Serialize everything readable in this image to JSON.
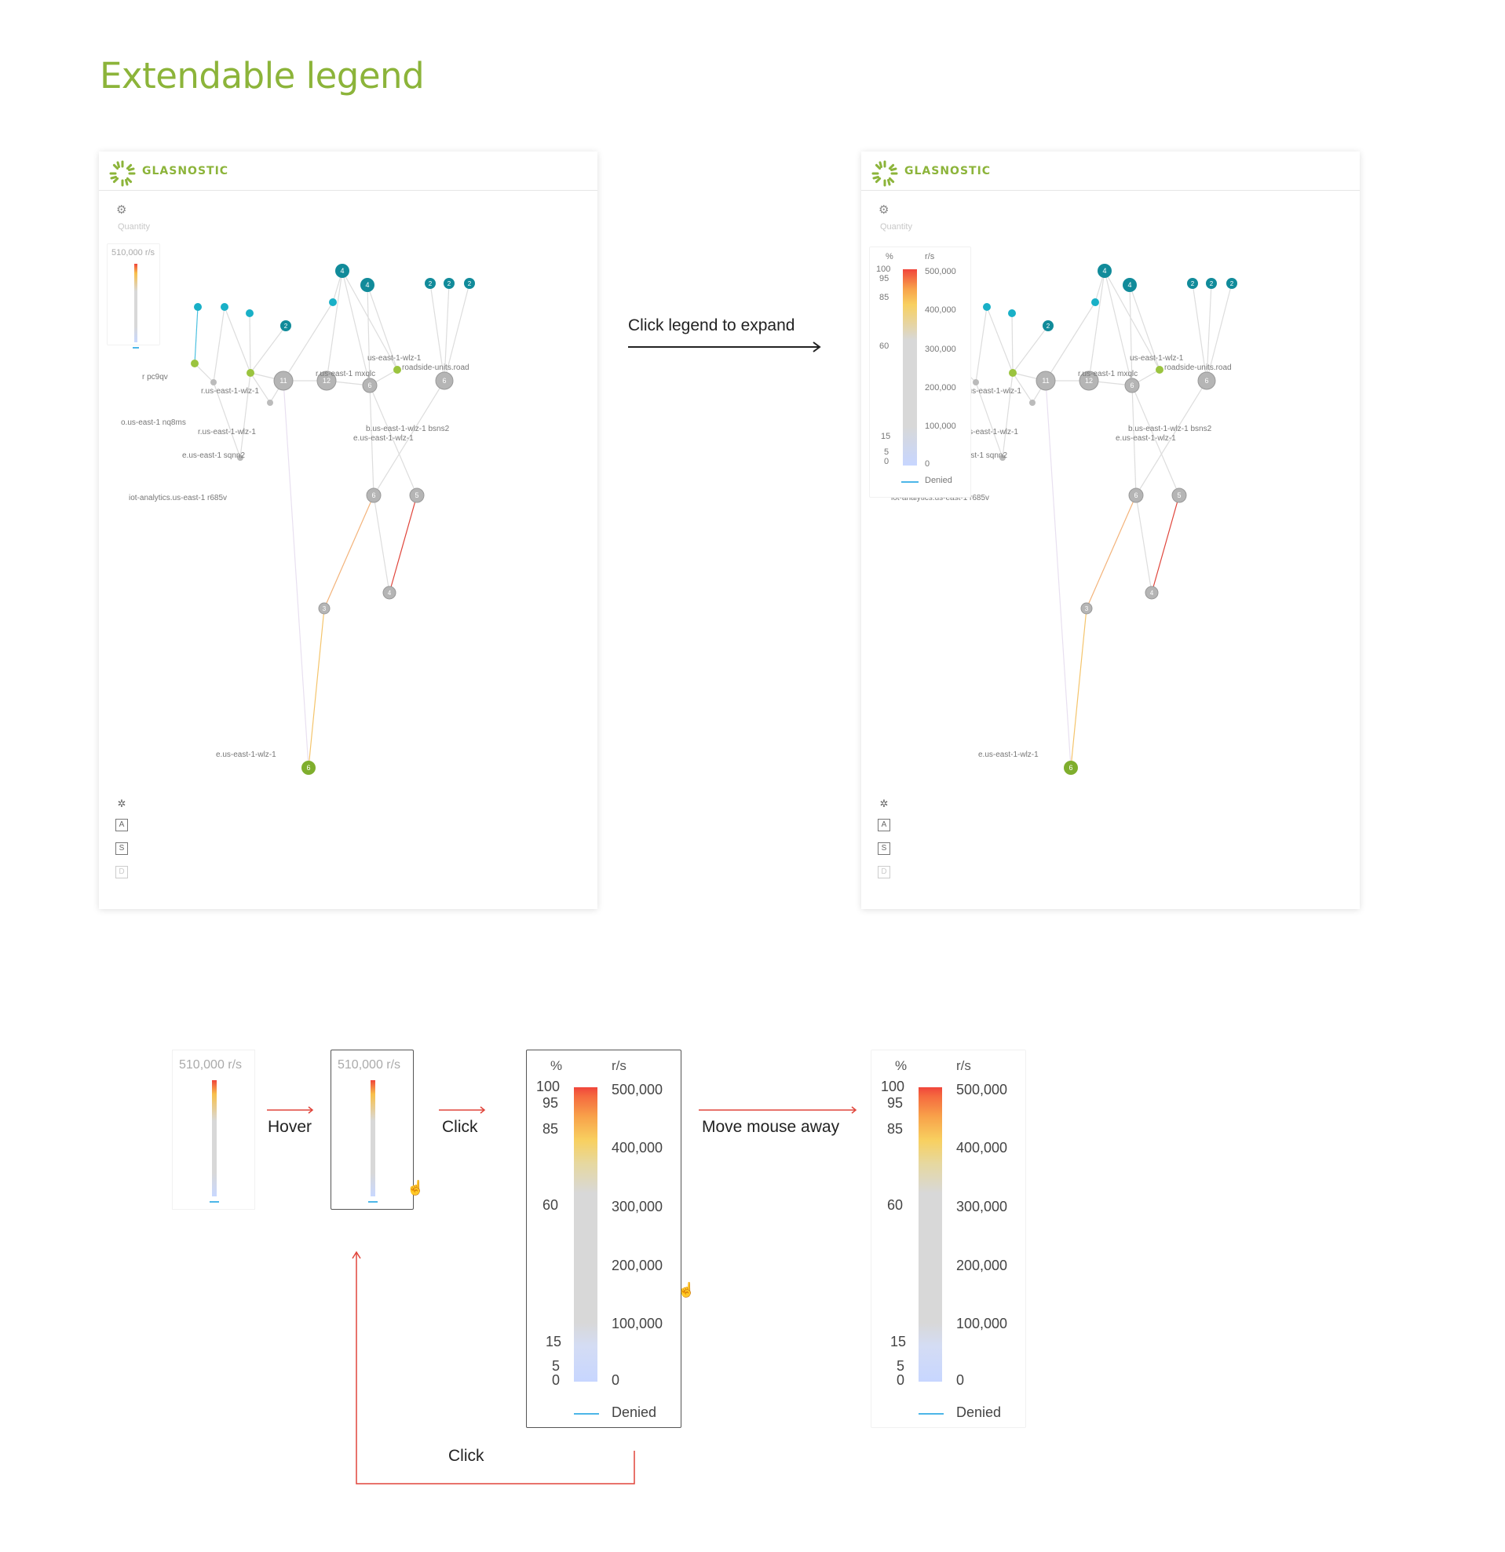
{
  "page": {
    "title": "Extendable legend"
  },
  "app": {
    "brand": "GLASNOSTIC",
    "quantity_label": "Quantity"
  },
  "legend_collapsed": {
    "caption": "510,000 r/s"
  },
  "legend_expanded": {
    "pct_header": "%",
    "rate_header": "r/s",
    "pct_ticks": [
      "100",
      "95",
      "85",
      "60",
      "15",
      "5",
      "0"
    ],
    "rate_ticks": [
      "500,000",
      "400,000",
      "300,000",
      "200,000",
      "100,000",
      "0"
    ],
    "denied_label": "Denied"
  },
  "graph": {
    "labels": {
      "pc9qv": "r pc9qv",
      "wlz1_top": "r.us-east-1-wlz-1",
      "mxqlc": "r.us-east-1 mxqlc",
      "wlz1_right": "us-east-1-wlz-1",
      "roadside": "roadside-units.road",
      "nq8ms": "o.us-east-1 nq8ms",
      "wlz1_mid": "r.us-east-1-wlz-1",
      "sqnn2": "e.us-east-1 sqnn2",
      "bsns2": "b.us-east-1-wlz-1 bsns2",
      "eus_wlz": "e.us-east-1-wlz-1",
      "iot": "iot-analytics.us-east-1 r685v",
      "bottom": "e.us-east-1-wlz-1"
    },
    "counts": {
      "n11": "11",
      "n12": "12",
      "n6": "6",
      "n4": "4",
      "n2": "2",
      "n5": "5",
      "n3": "3"
    }
  },
  "flow": {
    "annotation": "Click legend to expand",
    "hover": "Hover",
    "click": "Click",
    "move_away": "Move mouse away",
    "click_back": "Click"
  }
}
